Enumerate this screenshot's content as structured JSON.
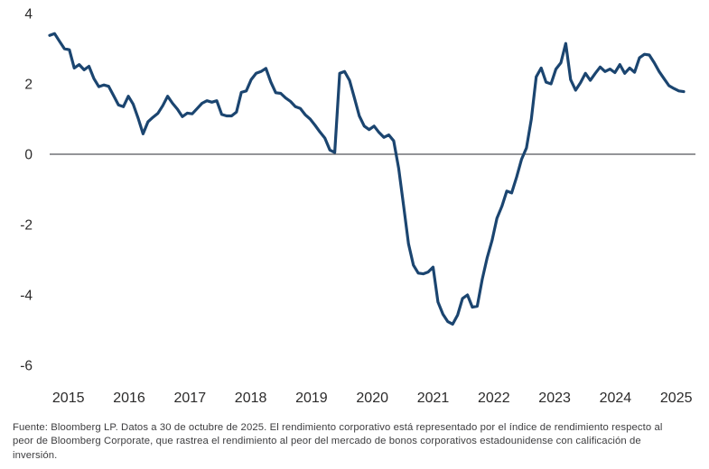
{
  "chart": {
    "footnote_lines": [
      "Fuente: Bloomberg LP. Datos a 30 de octubre de 2025. El rendimiento corporativo está representado por el índice de rendimiento respecto al",
      "peor de Bloomberg Corporate, que rastrea el rendimiento al peor del mercado de bonos corporativos estadounidense con calificación de",
      "inversión."
    ]
  },
  "chart_data": {
    "type": "line",
    "title": "",
    "frequency": "monthly",
    "x_range": [
      "2015-01",
      "2025-10"
    ],
    "x_tick_labels": [
      "2015",
      "2016",
      "2017",
      "2018",
      "2019",
      "2020",
      "2021",
      "2022",
      "2023",
      "2024",
      "2025"
    ],
    "y_ticks": [
      4,
      2,
      0,
      -2,
      -4,
      -6
    ],
    "ylim": [
      -6,
      4
    ],
    "grid": false,
    "zero_line": true,
    "legend": "none",
    "line_color": "#1b4570",
    "zero_line_color": "#55565a",
    "tick_label_color": "#2b2a2a",
    "series": [
      {
        "values": [
          3.38,
          3.43,
          3.21,
          3.0,
          2.97,
          2.45,
          2.55,
          2.4,
          2.5,
          2.15,
          1.92,
          1.97,
          1.93,
          1.67,
          1.4,
          1.35,
          1.65,
          1.42,
          1.02,
          0.58,
          0.92,
          1.05,
          1.16,
          1.38,
          1.65,
          1.45,
          1.28,
          1.07,
          1.17,
          1.15,
          1.3,
          1.45,
          1.52,
          1.48,
          1.52,
          1.13,
          1.09,
          1.09,
          1.2,
          1.76,
          1.8,
          2.12,
          2.3,
          2.35,
          2.44,
          2.05,
          1.75,
          1.73,
          1.6,
          1.5,
          1.35,
          1.3,
          1.12,
          1.0,
          0.82,
          0.63,
          0.46,
          0.12,
          0.05,
          2.3,
          2.35,
          2.1,
          1.6,
          1.09,
          0.8,
          0.7,
          0.8,
          0.62,
          0.48,
          0.55,
          0.38,
          -0.4,
          -1.45,
          -2.55,
          -3.15,
          -3.38,
          -3.4,
          -3.35,
          -3.21,
          -4.2,
          -4.55,
          -4.76,
          -4.83,
          -4.57,
          -4.1,
          -4.0,
          -4.35,
          -4.32,
          -3.56,
          -2.95,
          -2.45,
          -1.82,
          -1.48,
          -1.05,
          -1.1,
          -0.65,
          -0.15,
          0.18,
          1.0,
          2.2,
          2.45,
          2.05,
          2.0,
          2.42,
          2.6,
          3.15,
          2.12,
          1.82,
          2.03,
          2.3,
          2.1,
          2.3,
          2.48,
          2.35,
          2.42,
          2.32,
          2.55,
          2.3,
          2.45,
          2.33,
          2.74,
          2.84,
          2.82,
          2.6,
          2.35,
          2.15,
          1.95,
          1.87,
          1.8,
          1.78
        ]
      }
    ]
  }
}
